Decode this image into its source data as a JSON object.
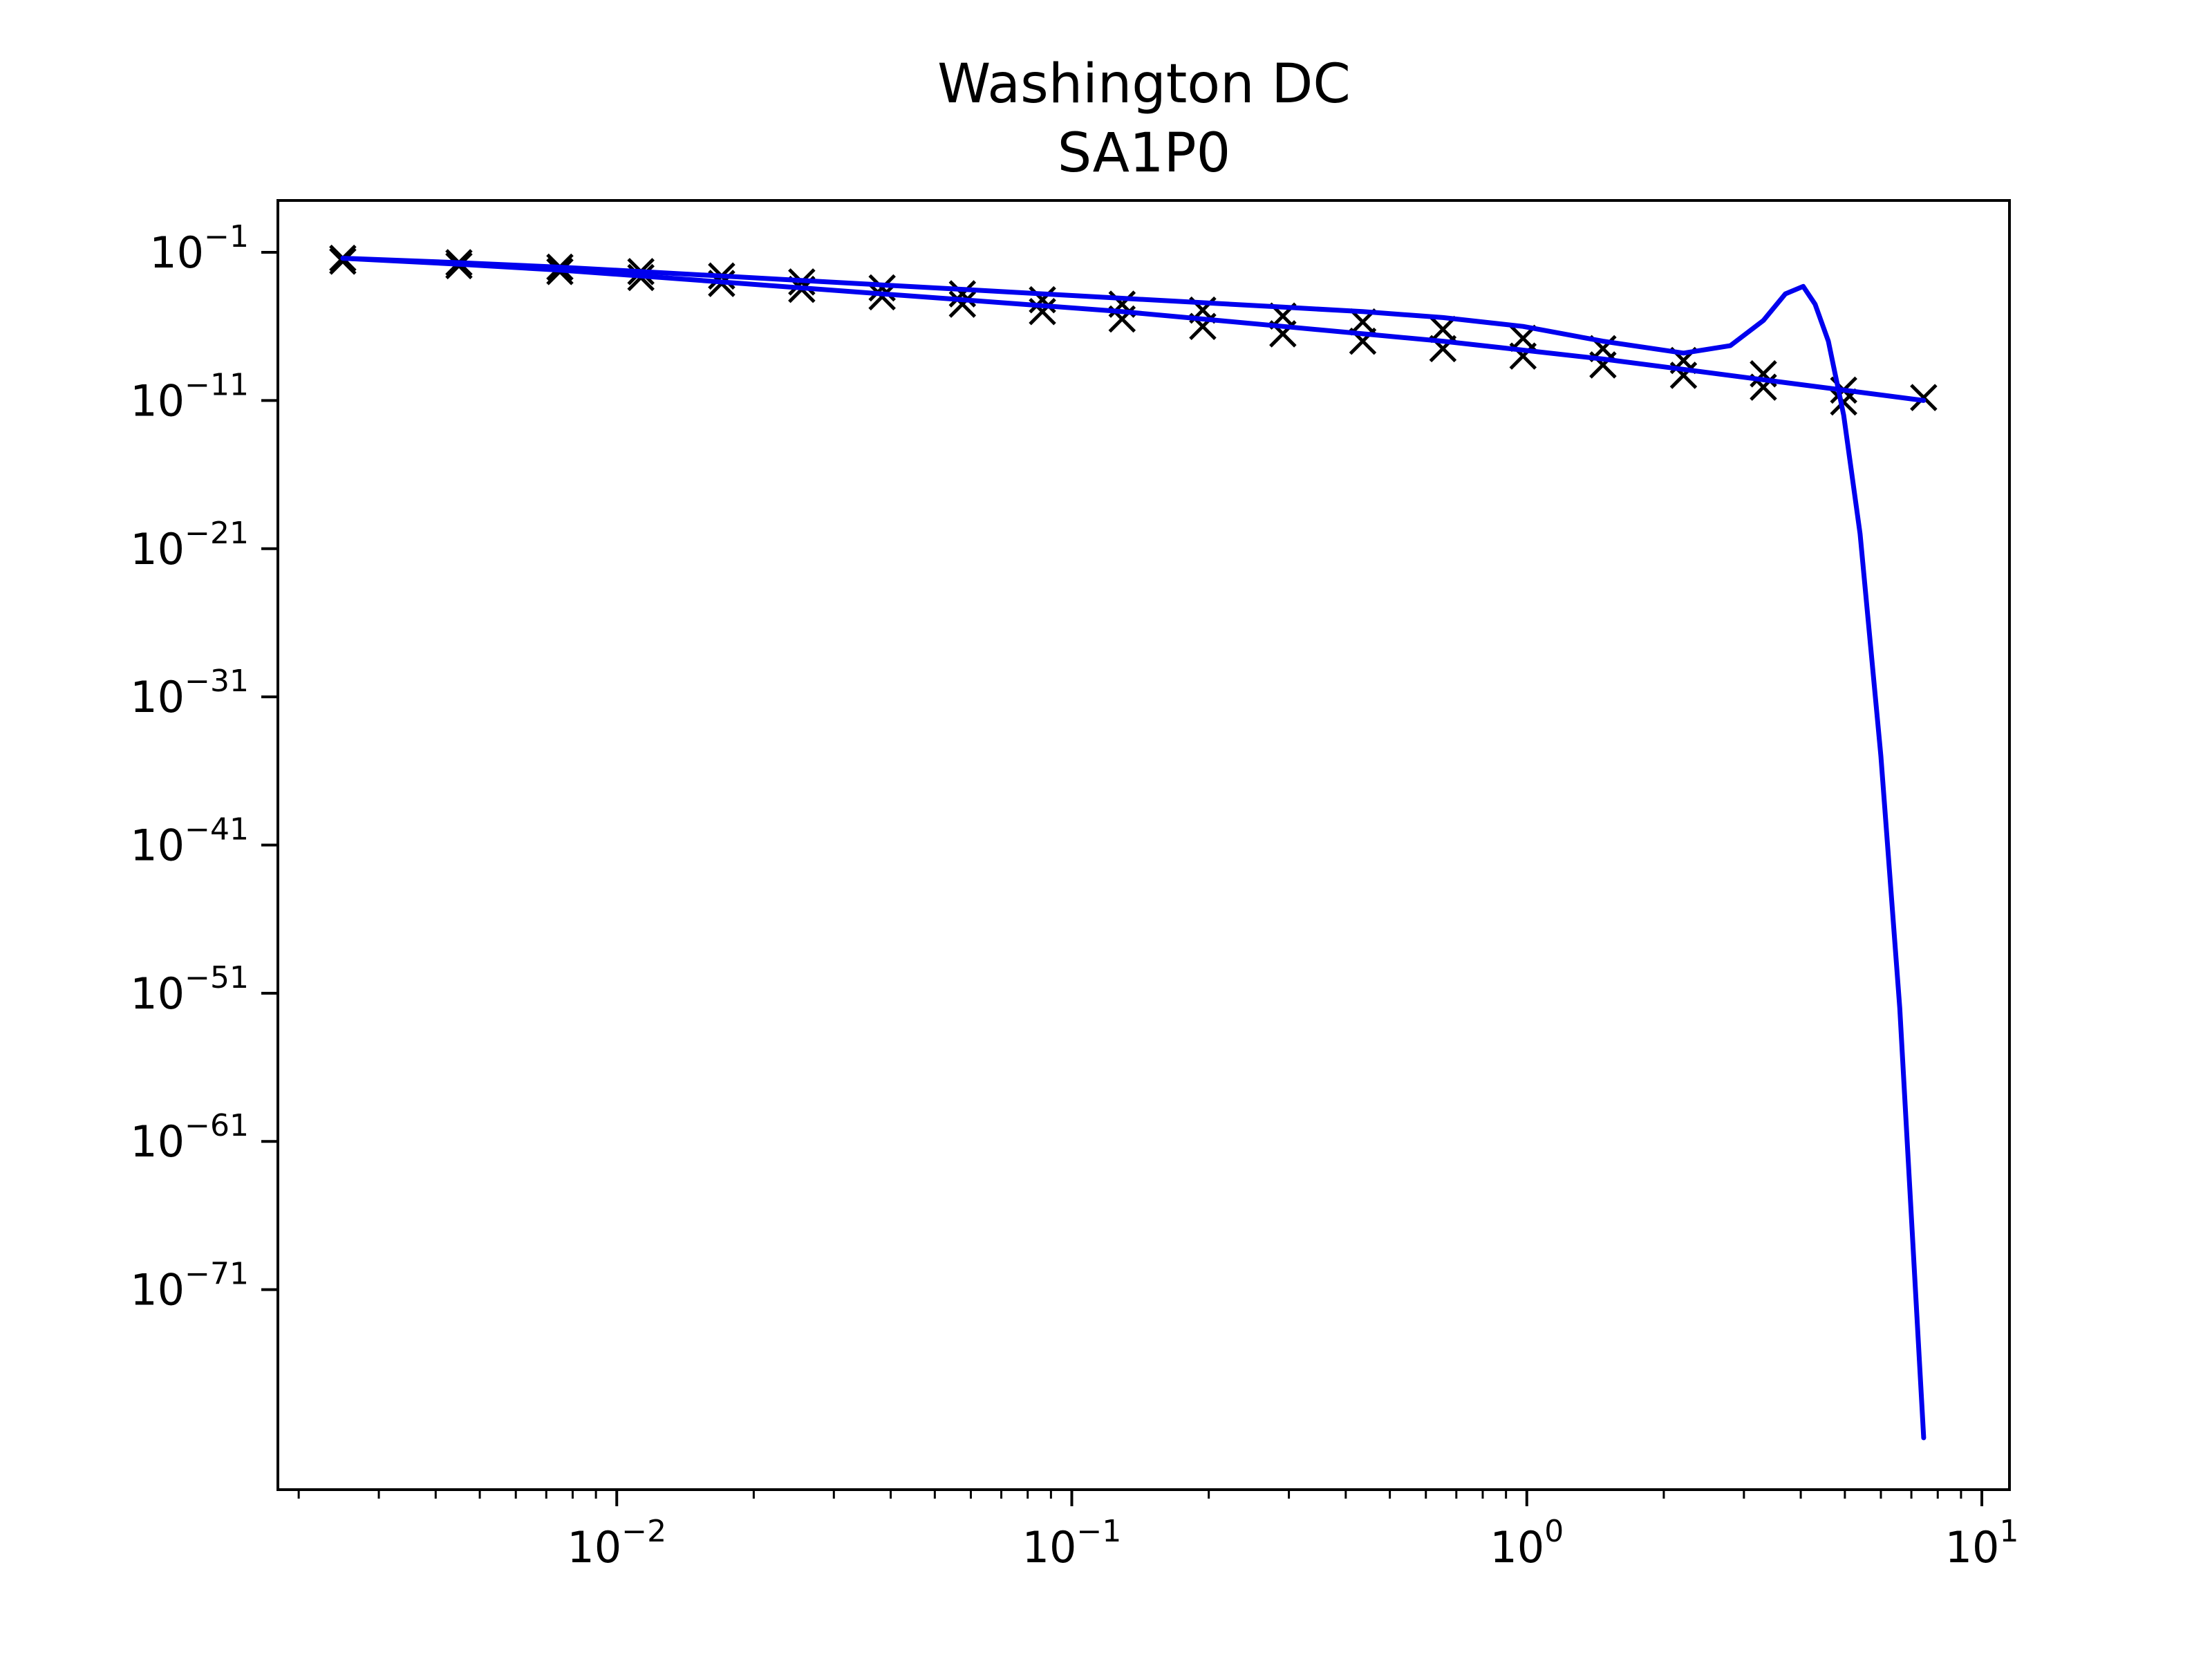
{
  "chart_data": {
    "type": "line",
    "title": "Washington DC",
    "subtitle": "SA1P0",
    "xlabel": "",
    "ylabel": "",
    "xscale": "log",
    "yscale": "log",
    "xlim": [
      0.0018,
      11.5
    ],
    "ylim_log10": [
      -84.5,
      2.5
    ],
    "grid": false,
    "legend": "none",
    "colors": {
      "line": "#0000ee",
      "marker": "#000000",
      "axes": "#000000"
    },
    "x_ticks": [
      {
        "value": 0.01,
        "base": "10",
        "exp": "−2"
      },
      {
        "value": 0.1,
        "base": "10",
        "exp": "−1"
      },
      {
        "value": 1,
        "base": "10",
        "exp": "0"
      },
      {
        "value": 10,
        "base": "10",
        "exp": "1"
      }
    ],
    "y_ticks": [
      {
        "value_log10": -1,
        "base": "10",
        "exp": "−1"
      },
      {
        "value_log10": -11,
        "base": "10",
        "exp": "−11"
      },
      {
        "value_log10": -21,
        "base": "10",
        "exp": "−21"
      },
      {
        "value_log10": -31,
        "base": "10",
        "exp": "−31"
      },
      {
        "value_log10": -41,
        "base": "10",
        "exp": "−41"
      },
      {
        "value_log10": -51,
        "base": "10",
        "exp": "−51"
      },
      {
        "value_log10": -61,
        "base": "10",
        "exp": "−61"
      },
      {
        "value_log10": -71,
        "base": "10",
        "exp": "−71"
      }
    ],
    "series": [
      {
        "kind": "markers",
        "marker": "x",
        "x": [
          0.0025,
          0.0045,
          0.0075,
          0.0113,
          0.017,
          0.0255,
          0.0383,
          0.0575,
          0.0862,
          0.129,
          0.194,
          0.291,
          0.436,
          0.654,
          0.981,
          1.47,
          2.21,
          3.31,
          4.97,
          7.45
        ],
        "y_log10": [
          -1.4,
          -1.7,
          -2.0,
          -2.3,
          -2.6,
          -3.0,
          -3.4,
          -3.8,
          -4.2,
          -4.5,
          -4.9,
          -5.3,
          -5.7,
          -6.2,
          -6.8,
          -7.5,
          -8.3,
          -9.2,
          -10.3,
          -10.8
        ]
      },
      {
        "kind": "markers",
        "marker": "x",
        "x": [
          0.0025,
          0.0045,
          0.0075,
          0.0113,
          0.017,
          0.0255,
          0.0383,
          0.0575,
          0.0862,
          0.129,
          0.194,
          0.291,
          0.436,
          0.654,
          0.981,
          1.47,
          2.21,
          3.31,
          4.97
        ],
        "y_log10": [
          -1.6,
          -1.9,
          -2.3,
          -2.7,
          -3.1,
          -3.5,
          -4.0,
          -4.5,
          -5.0,
          -5.5,
          -6.0,
          -6.5,
          -7.0,
          -7.5,
          -8.0,
          -8.6,
          -9.3,
          -10.1,
          -11.1
        ]
      },
      {
        "kind": "line",
        "x": [
          0.0025,
          0.0045,
          0.0075,
          0.0113,
          0.017,
          0.0255,
          0.0383,
          0.0575,
          0.0862,
          0.129,
          0.194,
          0.291,
          0.436,
          0.654,
          0.981,
          1.47,
          2.21,
          2.8,
          3.31,
          3.7,
          4.05,
          4.3,
          4.6,
          4.97,
          5.4,
          6.0,
          6.6,
          7.45
        ],
        "y_log10": [
          -1.4,
          -1.7,
          -2.0,
          -2.3,
          -2.6,
          -2.9,
          -3.2,
          -3.5,
          -3.8,
          -4.1,
          -4.4,
          -4.7,
          -5.0,
          -5.4,
          -6.0,
          -7.0,
          -7.8,
          -7.3,
          -5.6,
          -3.8,
          -3.3,
          -4.5,
          -7.0,
          -12.0,
          -20.0,
          -35.0,
          -52.0,
          -81.0
        ]
      },
      {
        "kind": "line",
        "x": [
          0.0025,
          0.0045,
          0.0075,
          0.0113,
          0.017,
          0.0255,
          0.0383,
          0.0575,
          0.0862,
          0.129,
          0.194,
          0.291,
          0.436,
          0.654,
          0.981,
          1.47,
          2.21,
          3.31,
          4.97,
          7.45
        ],
        "y_log10": [
          -1.4,
          -1.8,
          -2.2,
          -2.6,
          -3.0,
          -3.4,
          -3.8,
          -4.2,
          -4.6,
          -5.0,
          -5.5,
          -6.0,
          -6.5,
          -7.0,
          -7.6,
          -8.2,
          -8.9,
          -9.6,
          -10.3,
          -11.0
        ]
      }
    ]
  }
}
